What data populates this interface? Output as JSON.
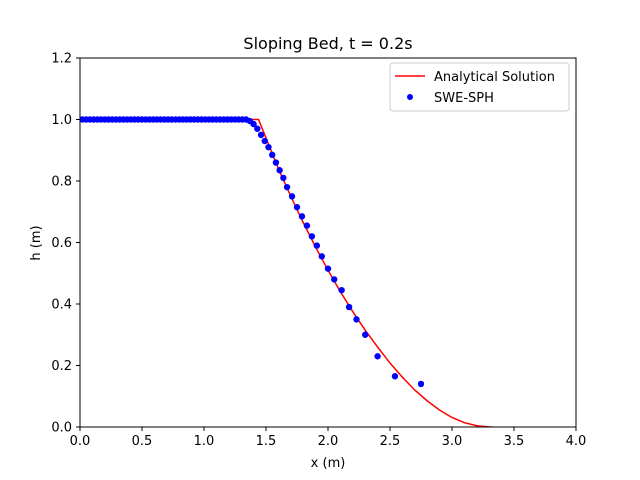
{
  "chart_data": {
    "type": "line",
    "title": "Sloping Bed, t = 0.2s",
    "xlabel": "x (m)",
    "ylabel": "h (m)",
    "xlim": [
      0.0,
      4.0
    ],
    "ylim": [
      0.0,
      1.2
    ],
    "xticks": [
      0.0,
      0.5,
      1.0,
      1.5,
      2.0,
      2.5,
      3.0,
      3.5,
      4.0
    ],
    "xtick_labels": [
      "0.0",
      "0.5",
      "1.0",
      "1.5",
      "2.0",
      "2.5",
      "3.0",
      "3.5",
      "4.0"
    ],
    "yticks": [
      0.0,
      0.2,
      0.4,
      0.6,
      0.8,
      1.0,
      1.2
    ],
    "ytick_labels": [
      "0.0",
      "0.2",
      "0.4",
      "0.6",
      "0.8",
      "1.0",
      "1.2"
    ],
    "grid": false,
    "legend_position": "top-right",
    "series": [
      {
        "name": "Analytical Solution",
        "kind": "line",
        "color": "#ff0000",
        "x": [
          0.0,
          1.44,
          1.5,
          1.6,
          1.7,
          1.8,
          1.9,
          2.0,
          2.1,
          2.2,
          2.3,
          2.4,
          2.5,
          2.6,
          2.7,
          2.8,
          2.9,
          3.0,
          3.1,
          3.2,
          3.3,
          3.33
        ],
        "y": [
          1.0,
          1.0,
          0.94,
          0.84,
          0.75,
          0.665,
          0.585,
          0.51,
          0.44,
          0.375,
          0.315,
          0.26,
          0.208,
          0.162,
          0.12,
          0.085,
          0.055,
          0.031,
          0.014,
          0.004,
          0.0,
          0.0
        ]
      },
      {
        "name": "SWE-SPH",
        "kind": "scatter",
        "color": "#0000ff",
        "x": [
          0.02,
          0.05,
          0.08,
          0.11,
          0.14,
          0.17,
          0.2,
          0.23,
          0.26,
          0.29,
          0.32,
          0.35,
          0.38,
          0.41,
          0.44,
          0.47,
          0.5,
          0.53,
          0.56,
          0.59,
          0.62,
          0.65,
          0.68,
          0.71,
          0.74,
          0.77,
          0.8,
          0.83,
          0.86,
          0.89,
          0.92,
          0.95,
          0.98,
          1.01,
          1.04,
          1.07,
          1.1,
          1.13,
          1.16,
          1.19,
          1.22,
          1.25,
          1.28,
          1.31,
          1.34,
          1.37,
          1.4,
          1.43,
          1.46,
          1.49,
          1.52,
          1.55,
          1.58,
          1.61,
          1.64,
          1.67,
          1.71,
          1.75,
          1.79,
          1.83,
          1.87,
          1.91,
          1.95,
          2.0,
          2.05,
          2.11,
          2.17,
          2.23,
          2.3,
          2.4,
          2.54,
          2.75
        ],
        "y": [
          1.0,
          1.0,
          1.0,
          1.0,
          1.0,
          1.0,
          1.0,
          1.0,
          1.0,
          1.0,
          1.0,
          1.0,
          1.0,
          1.0,
          1.0,
          1.0,
          1.0,
          1.0,
          1.0,
          1.0,
          1.0,
          1.0,
          1.0,
          1.0,
          1.0,
          1.0,
          1.0,
          1.0,
          1.0,
          1.0,
          1.0,
          1.0,
          1.0,
          1.0,
          1.0,
          1.0,
          1.0,
          1.0,
          1.0,
          1.0,
          1.0,
          1.0,
          1.0,
          1.0,
          1.0,
          0.995,
          0.985,
          0.97,
          0.95,
          0.93,
          0.91,
          0.885,
          0.86,
          0.835,
          0.81,
          0.78,
          0.75,
          0.715,
          0.685,
          0.655,
          0.62,
          0.59,
          0.555,
          0.515,
          0.48,
          0.445,
          0.39,
          0.35,
          0.3,
          0.23,
          0.165,
          0.14
        ]
      }
    ]
  }
}
